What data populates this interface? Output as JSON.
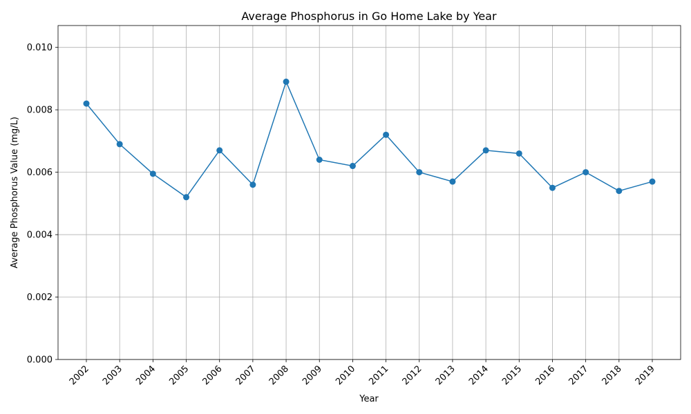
{
  "chart_data": {
    "type": "line",
    "title": "Average Phosphorus in Go Home Lake by Year",
    "xlabel": "Year",
    "ylabel": "Average Phosphorus Value (mg/L)",
    "x": [
      "2002",
      "2003",
      "2004",
      "2005",
      "2006",
      "2007",
      "2008",
      "2009",
      "2010",
      "2011",
      "2012",
      "2013",
      "2014",
      "2015",
      "2016",
      "2017",
      "2018",
      "2019"
    ],
    "series": [
      {
        "values": [
          0.0082,
          0.0069,
          0.00595,
          0.0052,
          0.0067,
          0.0056,
          0.0089,
          0.0064,
          0.0062,
          0.0072,
          0.006,
          0.0057,
          0.0067,
          0.0066,
          0.0055,
          0.006,
          0.0054,
          0.0057
        ],
        "color": "#1f77b4",
        "marker": "circle"
      }
    ],
    "ylim": [
      0,
      0.0107
    ],
    "yticks": [
      "0.000",
      "0.002",
      "0.004",
      "0.006",
      "0.008",
      "0.010"
    ],
    "ytick_values": [
      0,
      0.002,
      0.004,
      0.006,
      0.008,
      0.01
    ],
    "grid": true,
    "legend": "none"
  }
}
